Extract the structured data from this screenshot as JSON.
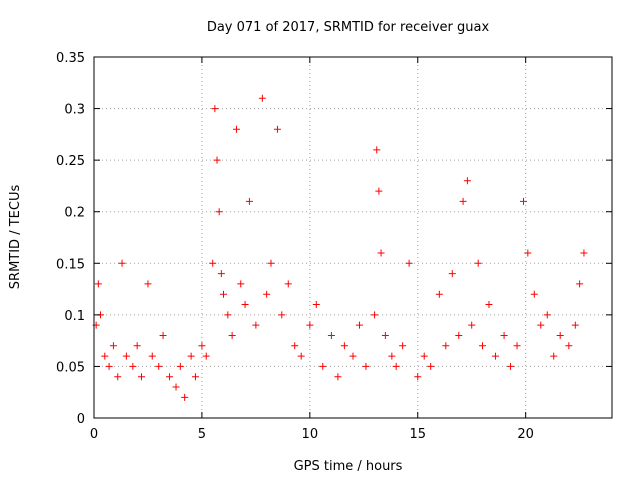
{
  "chart_data": {
    "type": "scatter",
    "title": "Day 071 of 2017, SRMTID for receiver guax",
    "xlabel": "GPS time / hours",
    "ylabel": "SRMTID / TECUs",
    "xlim": [
      0,
      24
    ],
    "ylim": [
      0,
      0.35
    ],
    "xticks": [
      0,
      5,
      10,
      15,
      20
    ],
    "xtick_labels": [
      "0",
      "5",
      "10",
      "15",
      "20"
    ],
    "yticks": [
      0,
      0.05,
      0.1,
      0.15,
      0.2,
      0.25,
      0.3,
      0.35
    ],
    "ytick_labels": [
      "0",
      "0.05",
      "0.1",
      "0.15",
      "0.2",
      "0.25",
      "0.3",
      "0.35"
    ],
    "grid": true,
    "marker": "+",
    "colors": {
      "points": "#ff0000",
      "axes": "#000000",
      "grid": "#a0a0a0"
    },
    "series": [
      {
        "name": "SRMTID",
        "x": [
          0.1,
          0.2,
          0.3,
          0.5,
          0.7,
          0.9,
          1.1,
          1.3,
          1.5,
          1.8,
          2.0,
          2.2,
          2.5,
          2.7,
          3.0,
          3.2,
          3.5,
          3.8,
          4.0,
          4.2,
          4.5,
          4.7,
          5.0,
          5.2,
          5.5,
          5.6,
          5.7,
          5.8,
          5.9,
          6.0,
          6.2,
          6.4,
          6.6,
          6.8,
          7.0,
          7.2,
          7.5,
          7.8,
          8.0,
          8.2,
          8.5,
          8.7,
          9.0,
          9.3,
          9.6,
          10.0,
          10.3,
          10.6,
          11.0,
          11.3,
          11.6,
          12.0,
          12.3,
          12.6,
          13.0,
          13.1,
          13.2,
          13.3,
          13.5,
          13.8,
          14.0,
          14.3,
          14.6,
          15.0,
          15.3,
          15.6,
          16.0,
          16.3,
          16.6,
          16.9,
          17.1,
          17.3,
          17.5,
          17.8,
          18.0,
          18.3,
          18.6,
          19.0,
          19.3,
          19.6,
          19.9,
          20.1,
          20.4,
          20.7,
          21.0,
          21.3,
          21.6,
          22.0,
          22.3,
          22.5,
          22.7
        ],
        "y": [
          0.09,
          0.13,
          0.1,
          0.06,
          0.05,
          0.07,
          0.04,
          0.15,
          0.06,
          0.05,
          0.07,
          0.04,
          0.13,
          0.06,
          0.05,
          0.08,
          0.04,
          0.03,
          0.05,
          0.02,
          0.06,
          0.04,
          0.07,
          0.06,
          0.15,
          0.3,
          0.25,
          0.2,
          0.14,
          0.12,
          0.1,
          0.08,
          0.28,
          0.13,
          0.11,
          0.21,
          0.09,
          0.31,
          0.12,
          0.15,
          0.28,
          0.1,
          0.13,
          0.07,
          0.06,
          0.09,
          0.11,
          0.05,
          0.08,
          0.04,
          0.07,
          0.06,
          0.09,
          0.05,
          0.1,
          0.26,
          0.22,
          0.16,
          0.08,
          0.06,
          0.05,
          0.07,
          0.15,
          0.04,
          0.06,
          0.05,
          0.12,
          0.07,
          0.14,
          0.08,
          0.21,
          0.23,
          0.09,
          0.15,
          0.07,
          0.11,
          0.06,
          0.08,
          0.05,
          0.07,
          0.21,
          0.16,
          0.12,
          0.09,
          0.1,
          0.06,
          0.08,
          0.07,
          0.09,
          0.13,
          0.16
        ]
      }
    ]
  }
}
